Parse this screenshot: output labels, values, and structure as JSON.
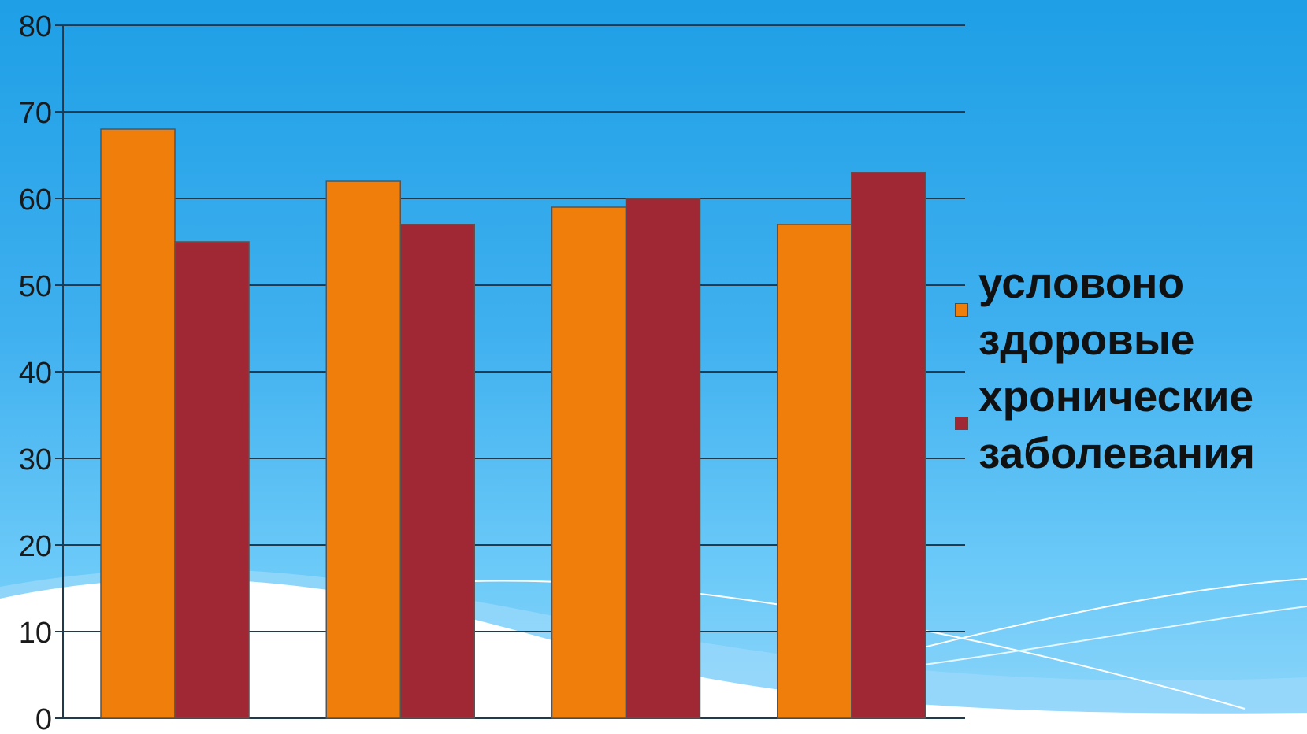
{
  "chart_data": {
    "type": "bar",
    "title": "",
    "xlabel": "",
    "ylabel": "",
    "categories": [
      "",
      "",
      "",
      ""
    ],
    "series": [
      {
        "name": "условоно здоровые",
        "values": [
          68,
          62,
          59,
          57
        ],
        "color": "#ef7f0a"
      },
      {
        "name": "хронические заболевания",
        "values": [
          55,
          57,
          60,
          63
        ],
        "color": "#a02734"
      }
    ],
    "ylim": [
      0,
      80
    ],
    "yticks": [
      0,
      10,
      20,
      30,
      40,
      50,
      60,
      70,
      80
    ],
    "grid": true,
    "legend_position": "right"
  },
  "legend": {
    "items": [
      {
        "label": "условоно\nздоровые",
        "color": "#ef7f0a"
      },
      {
        "label": "хронические\nзаболевания",
        "color": "#a02734"
      }
    ]
  },
  "colors": {
    "background_top": "#1e9fe6",
    "background_bottom": "#8fd6fa",
    "gridline": "#1f3a4d"
  }
}
